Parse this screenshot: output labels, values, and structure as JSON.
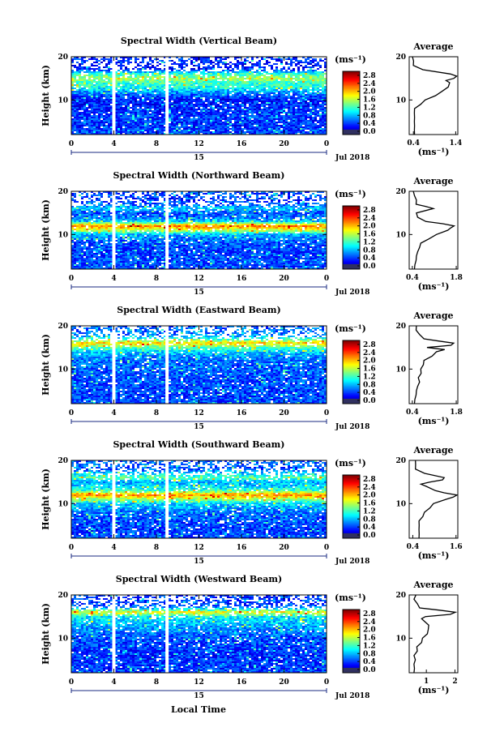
{
  "figure": {
    "xlabel": "Local Time",
    "ylabel": "Height (km)",
    "date_label": "Jul 2018",
    "day_label": "15",
    "avg_title": "Average",
    "unit_label": "(ms⁻¹)",
    "x_ticks": [
      "0",
      "4",
      "8",
      "12",
      "16",
      "20",
      "0"
    ],
    "y_ticks": [
      "20",
      "10"
    ],
    "colorbar_ticks": [
      "2.8",
      "2.4",
      "2.0",
      "1.6",
      "1.2",
      "0.8",
      "0.4",
      "0.0"
    ],
    "gap_times_hours": [
      4,
      9
    ]
  },
  "chart_data": [
    {
      "type": "heatmap",
      "title": "Spectral Width (Vertical Beam)",
      "xlim": [
        0,
        24
      ],
      "ylim": [
        2,
        20
      ],
      "clim": [
        0,
        3.0
      ],
      "bands": [
        [
          2,
          0.6
        ],
        [
          4,
          0.5
        ],
        [
          6,
          0.55
        ],
        [
          8,
          0.5
        ],
        [
          10,
          0.45
        ],
        [
          11,
          0.6
        ],
        [
          12,
          0.9
        ],
        [
          13,
          1.2
        ],
        [
          14,
          1.3
        ],
        [
          15,
          1.6
        ],
        [
          16,
          1.3
        ],
        [
          17,
          0.5
        ],
        [
          18,
          0.4
        ],
        [
          19,
          0.5
        ],
        [
          20,
          0.5
        ]
      ],
      "avg": {
        "xticks": [
          "0.4",
          "1.4"
        ],
        "xlim": [
          0.3,
          1.45
        ],
        "profile": [
          [
            2,
            0.45
          ],
          [
            3,
            0.4
          ],
          [
            4,
            0.45
          ],
          [
            5,
            0.4
          ],
          [
            6,
            0.45
          ],
          [
            7,
            0.4
          ],
          [
            8,
            0.45
          ],
          [
            9,
            0.55
          ],
          [
            10,
            0.7
          ],
          [
            11,
            0.9
          ],
          [
            12,
            1.1
          ],
          [
            13,
            1.2
          ],
          [
            14,
            1.28
          ],
          [
            14.5,
            1.15
          ],
          [
            15,
            1.38
          ],
          [
            15.5,
            1.4
          ],
          [
            16,
            1.3
          ],
          [
            17,
            0.6
          ],
          [
            18,
            0.42
          ],
          [
            19,
            0.38
          ],
          [
            20,
            0.4
          ]
        ]
      }
    },
    {
      "type": "heatmap",
      "title": "Spectral Width (Northward Beam)",
      "xlim": [
        0,
        24
      ],
      "ylim": [
        2,
        20
      ],
      "clim": [
        0,
        3.0
      ],
      "bands": [
        [
          2,
          0.6
        ],
        [
          4,
          0.6
        ],
        [
          6,
          0.55
        ],
        [
          8,
          0.6
        ],
        [
          10,
          0.9
        ],
        [
          11,
          1.7
        ],
        [
          12,
          2.3
        ],
        [
          13,
          1.0
        ],
        [
          14,
          0.7
        ],
        [
          15,
          0.6
        ],
        [
          16,
          1.0
        ],
        [
          17,
          0.6
        ],
        [
          18,
          0.5
        ],
        [
          19,
          0.6
        ],
        [
          20,
          0.6
        ]
      ],
      "avg": {
        "xticks": [
          "0.4",
          "1.8"
        ],
        "xlim": [
          0.3,
          1.85
        ],
        "profile": [
          [
            2,
            0.5
          ],
          [
            3,
            0.45
          ],
          [
            4,
            0.55
          ],
          [
            5,
            0.5
          ],
          [
            6,
            0.6
          ],
          [
            7,
            0.6
          ],
          [
            8,
            0.7
          ],
          [
            9,
            0.9
          ],
          [
            10,
            1.2
          ],
          [
            11,
            1.5
          ],
          [
            11.5,
            1.65
          ],
          [
            12,
            1.7
          ],
          [
            12.5,
            1.4
          ],
          [
            13,
            0.8
          ],
          [
            14,
            0.6
          ],
          [
            15,
            0.5
          ],
          [
            16,
            1.1
          ],
          [
            16.5,
            0.8
          ],
          [
            17,
            0.55
          ],
          [
            18,
            0.5
          ],
          [
            19,
            0.5
          ],
          [
            20,
            0.4
          ]
        ]
      }
    },
    {
      "type": "heatmap",
      "title": "Spectral Width (Eastward Beam)",
      "xlim": [
        0,
        24
      ],
      "ylim": [
        2,
        20
      ],
      "clim": [
        0,
        3.0
      ],
      "bands": [
        [
          2,
          0.6
        ],
        [
          4,
          0.55
        ],
        [
          6,
          0.6
        ],
        [
          8,
          0.6
        ],
        [
          10,
          0.65
        ],
        [
          12,
          0.7
        ],
        [
          13,
          0.8
        ],
        [
          14,
          1.0
        ],
        [
          15,
          1.4
        ],
        [
          16,
          2.0
        ],
        [
          17,
          1.2
        ],
        [
          18,
          0.7
        ],
        [
          19,
          0.7
        ],
        [
          20,
          0.6
        ]
      ],
      "avg": {
        "xticks": [
          "0.4",
          "1.8"
        ],
        "xlim": [
          0.3,
          1.85
        ],
        "profile": [
          [
            2,
            0.5
          ],
          [
            3,
            0.45
          ],
          [
            4,
            0.55
          ],
          [
            5,
            0.5
          ],
          [
            6,
            0.6
          ],
          [
            7,
            0.6
          ],
          [
            8,
            0.62
          ],
          [
            9,
            0.65
          ],
          [
            10,
            0.7
          ],
          [
            11,
            0.72
          ],
          [
            12,
            0.8
          ],
          [
            13,
            1.0
          ],
          [
            14,
            1.2
          ],
          [
            14.5,
            1.4
          ],
          [
            15,
            0.9
          ],
          [
            15.5,
            1.6
          ],
          [
            16,
            1.75
          ],
          [
            16.5,
            1.2
          ],
          [
            17,
            0.8
          ],
          [
            18,
            0.6
          ],
          [
            19,
            0.55
          ],
          [
            20,
            0.5
          ]
        ]
      }
    },
    {
      "type": "heatmap",
      "title": "Spectral Width (Southward Beam)",
      "xlim": [
        0,
        24
      ],
      "ylim": [
        2,
        20
      ],
      "clim": [
        0,
        3.0
      ],
      "bands": [
        [
          2,
          0.6
        ],
        [
          4,
          0.55
        ],
        [
          6,
          0.6
        ],
        [
          8,
          0.7
        ],
        [
          10,
          1.0
        ],
        [
          11,
          1.6
        ],
        [
          12,
          2.2
        ],
        [
          13,
          1.3
        ],
        [
          14,
          1.0
        ],
        [
          15,
          0.9
        ],
        [
          16,
          1.4
        ],
        [
          17,
          1.0
        ],
        [
          18,
          0.6
        ],
        [
          19,
          0.7
        ],
        [
          20,
          0.6
        ]
      ],
      "avg": {
        "xticks": [
          "0.4",
          "1.6"
        ],
        "xlim": [
          0.3,
          1.65
        ],
        "profile": [
          [
            2,
            0.6
          ],
          [
            3,
            0.55
          ],
          [
            4,
            0.6
          ],
          [
            5,
            0.55
          ],
          [
            6,
            0.6
          ],
          [
            7,
            0.65
          ],
          [
            8,
            0.75
          ],
          [
            9,
            0.85
          ],
          [
            10,
            1.0
          ],
          [
            11,
            1.3
          ],
          [
            11.5,
            1.55
          ],
          [
            12,
            1.6
          ],
          [
            12.5,
            1.3
          ],
          [
            13,
            1.0
          ],
          [
            14,
            0.8
          ],
          [
            14.5,
            0.6
          ],
          [
            15,
            0.9
          ],
          [
            15.5,
            1.2
          ],
          [
            16,
            1.3
          ],
          [
            17,
            0.7
          ],
          [
            18,
            0.5
          ],
          [
            19,
            0.45
          ],
          [
            20,
            0.5
          ]
        ]
      }
    },
    {
      "type": "heatmap",
      "title": "Spectral Width (Westward Beam)",
      "xlim": [
        0,
        24
      ],
      "ylim": [
        2,
        20
      ],
      "clim": [
        0,
        3.0
      ],
      "bands": [
        [
          2,
          0.55
        ],
        [
          4,
          0.55
        ],
        [
          6,
          0.5
        ],
        [
          8,
          0.55
        ],
        [
          10,
          0.6
        ],
        [
          11,
          0.7
        ],
        [
          12,
          0.8
        ],
        [
          13,
          0.9
        ],
        [
          14,
          1.0
        ],
        [
          15,
          1.1
        ],
        [
          16,
          1.9
        ],
        [
          17,
          0.8
        ],
        [
          18,
          0.5
        ],
        [
          19,
          0.55
        ],
        [
          20,
          0.5
        ]
      ],
      "avg": {
        "xticks": [
          "1",
          "2"
        ],
        "xlim": [
          0.4,
          2.1
        ],
        "profile": [
          [
            2,
            0.6
          ],
          [
            3,
            0.55
          ],
          [
            4,
            0.6
          ],
          [
            5,
            0.58
          ],
          [
            6,
            0.6
          ],
          [
            7,
            0.65
          ],
          [
            8,
            0.7
          ],
          [
            9,
            0.8
          ],
          [
            10,
            0.9
          ],
          [
            11,
            1.0
          ],
          [
            12,
            1.1
          ],
          [
            13,
            1.05
          ],
          [
            14,
            0.95
          ],
          [
            14.5,
            0.8
          ],
          [
            15,
            1.0
          ],
          [
            15.5,
            1.8
          ],
          [
            16,
            2.05
          ],
          [
            16.5,
            1.4
          ],
          [
            17,
            0.8
          ],
          [
            18,
            0.65
          ],
          [
            19,
            0.6
          ],
          [
            20,
            0.6
          ]
        ]
      }
    }
  ]
}
